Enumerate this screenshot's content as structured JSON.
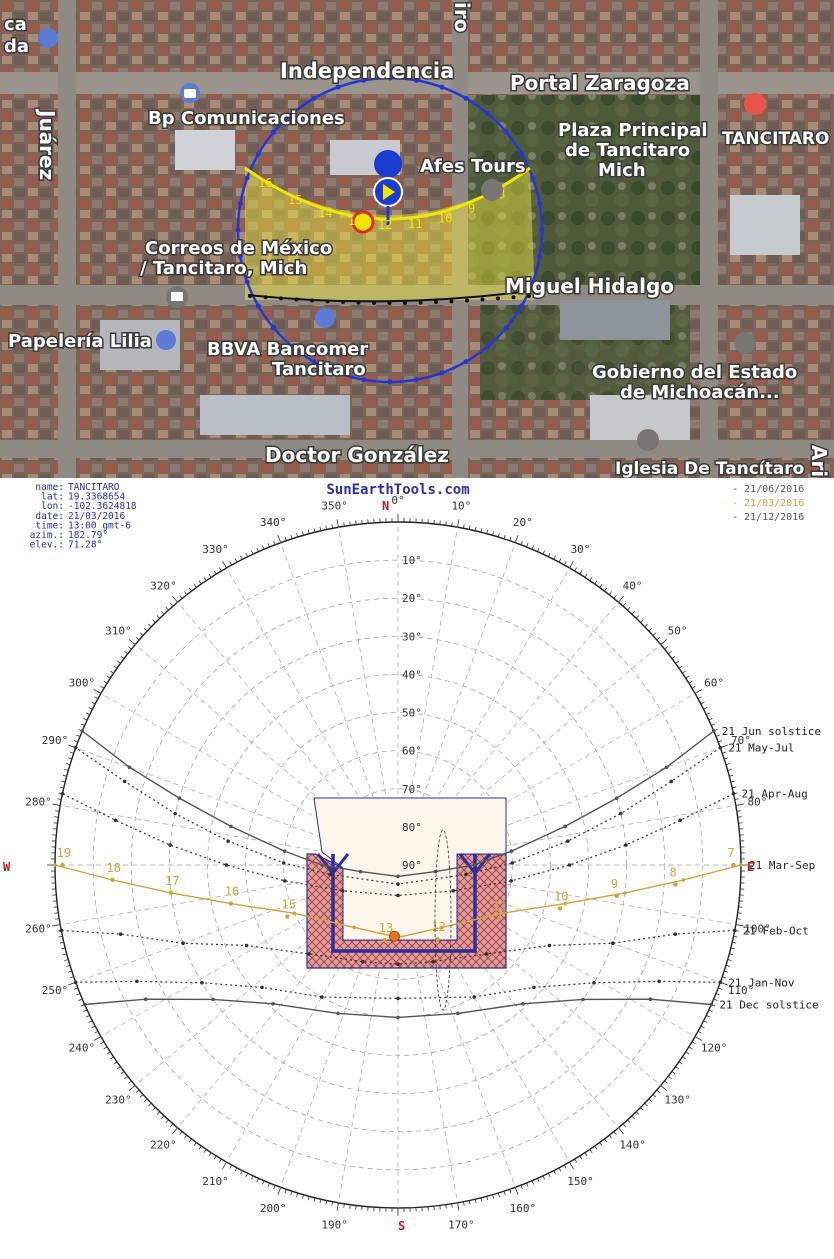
{
  "map": {
    "streets": {
      "independencia": "Independencia",
      "portal_zaragoza": "Portal Zaragoza",
      "juarez": "Juárez",
      "miguel_hidalgo": "Miguel Hidalgo",
      "doctor_gonzalez": "Doctor González",
      "top_cut": "iro",
      "right_cut": "Ari"
    },
    "places": {
      "bp": "Bp Comunicaciones",
      "plaza_1": "Plaza Principal",
      "plaza_2": "de Tancitaro",
      "plaza_3": "Mich",
      "tancitaro": "TANCITARO",
      "afes": "Afes Tours",
      "correos_1": "Correos de México",
      "correos_2": "/ Tancitaro, Mich",
      "papeleria": "Papelería Lilia",
      "bbva_1": "BBVA Bancomer",
      "bbva_2": "Tancitaro",
      "gob_1": "Gobierno del Estado",
      "gob_2": "de Michoacán...",
      "iglesia": "Iglesia De Tancítaro",
      "topleft_1": "ca",
      "topleft_2": "da"
    },
    "sun_hours": [
      "16",
      "15",
      "14",
      "13",
      "12",
      "11",
      "10",
      "9",
      "8"
    ],
    "colors": {
      "sun_path": "#f2e600",
      "horizon_circle": "#2436d6",
      "shadow_line": "#111111",
      "sun": "#e02a1e",
      "marker": "#1a3ccf"
    }
  },
  "chart_data": {
    "type": "polar sun-path diagram",
    "title": "SunEarthTools.com",
    "info": [
      {
        "label": "name:",
        "value": "TANCITARO"
      },
      {
        "label": "lat:",
        "value": "19.3368654"
      },
      {
        "label": "lon:",
        "value": "-102.3624818"
      },
      {
        "label": "date:",
        "value": "21/03/2016"
      },
      {
        "label": "time:",
        "value": "13:00 gmt-6"
      },
      {
        "label": "azim.:",
        "value": "182.79°"
      },
      {
        "label": "elev.:",
        "value": "71.28°"
      }
    ],
    "legend": [
      {
        "label": "- 21/06/2016",
        "color": "#555555"
      },
      {
        "label": "- 21/03/2016",
        "color": "#d4a240"
      },
      {
        "label": "- 21/12/2016",
        "color": "#555555"
      }
    ],
    "cardinals": {
      "N": "N",
      "E": "E",
      "S": "S",
      "W": "W"
    },
    "azimuth_labels": [
      {
        "az": 0,
        "label": "0°"
      },
      {
        "az": 10,
        "label": "10°"
      },
      {
        "az": 20,
        "label": "20°"
      },
      {
        "az": 30,
        "label": "30°"
      },
      {
        "az": 40,
        "label": "40°"
      },
      {
        "az": 50,
        "label": "50°"
      },
      {
        "az": 60,
        "label": "60°"
      },
      {
        "az": 70,
        "label": "70°"
      },
      {
        "az": 80,
        "label": "80°"
      },
      {
        "az": 100,
        "label": "100°"
      },
      {
        "az": 110,
        "label": "110°"
      },
      {
        "az": 120,
        "label": "120°"
      },
      {
        "az": 130,
        "label": "130°"
      },
      {
        "az": 140,
        "label": "140°"
      },
      {
        "az": 150,
        "label": "150°"
      },
      {
        "az": 160,
        "label": "160°"
      },
      {
        "az": 170,
        "label": "170°"
      },
      {
        "az": 190,
        "label": "190°"
      },
      {
        "az": 200,
        "label": "200°"
      },
      {
        "az": 210,
        "label": "210°"
      },
      {
        "az": 220,
        "label": "220°"
      },
      {
        "az": 230,
        "label": "230°"
      },
      {
        "az": 240,
        "label": "240°"
      },
      {
        "az": 250,
        "label": "250°"
      },
      {
        "az": 260,
        "label": "260°"
      },
      {
        "az": 280,
        "label": "280°"
      },
      {
        "az": 290,
        "label": "290°"
      },
      {
        "az": 300,
        "label": "300°"
      },
      {
        "az": 310,
        "label": "310°"
      },
      {
        "az": 320,
        "label": "320°"
      },
      {
        "az": 330,
        "label": "330°"
      },
      {
        "az": 340,
        "label": "340°"
      },
      {
        "az": 350,
        "label": "350°"
      }
    ],
    "elevation_labels": [
      "10°",
      "20°",
      "30°",
      "40°",
      "50°",
      "60°",
      "70°",
      "80°",
      "90°"
    ],
    "elevation_values": [
      10,
      20,
      30,
      40,
      50,
      60,
      70,
      80,
      90
    ],
    "series": [
      {
        "name": "21 Jun  solstice",
        "date": "21/06/2016",
        "style": "solid",
        "color": "#555555",
        "points": [
          [
            67,
            0
          ],
          [
            70,
            15
          ],
          [
            73,
            30
          ],
          [
            77,
            45
          ],
          [
            83,
            60
          ],
          [
            90,
            70
          ],
          [
            100,
            80
          ],
          [
            180,
            87
          ],
          [
            260,
            80
          ],
          [
            270,
            70
          ],
          [
            277,
            60
          ],
          [
            283,
            45
          ],
          [
            287,
            30
          ],
          [
            290,
            15
          ],
          [
            293,
            0
          ]
        ]
      },
      {
        "name": "21 May-Jul",
        "style": "dotted",
        "color": "#333333",
        "points": [
          [
            70,
            0
          ],
          [
            73,
            15
          ],
          [
            77,
            30
          ],
          [
            82,
            45
          ],
          [
            89,
            60
          ],
          [
            98,
            72
          ],
          [
            180,
            85
          ],
          [
            262,
            72
          ],
          [
            271,
            60
          ],
          [
            278,
            45
          ],
          [
            283,
            30
          ],
          [
            287,
            15
          ],
          [
            290,
            0
          ]
        ]
      },
      {
        "name": "21 Apr-Aug",
        "style": "dotted",
        "color": "#333333",
        "points": [
          [
            78,
            0
          ],
          [
            81,
            15
          ],
          [
            85,
            30
          ],
          [
            90,
            45
          ],
          [
            98,
            60
          ],
          [
            115,
            74
          ],
          [
            180,
            82
          ],
          [
            245,
            74
          ],
          [
            262,
            60
          ],
          [
            270,
            45
          ],
          [
            275,
            30
          ],
          [
            279,
            15
          ],
          [
            282,
            0
          ]
        ]
      },
      {
        "name": "21 Mar-Sep",
        "date": "21/03/2016",
        "style": "solid",
        "color": "#d4a240",
        "points": [
          [
            90,
            0
          ],
          [
            93,
            15
          ],
          [
            97,
            30
          ],
          [
            103,
            45
          ],
          [
            115,
            60
          ],
          [
            145,
            70
          ],
          [
            180,
            71
          ],
          [
            215,
            70
          ],
          [
            245,
            60
          ],
          [
            257,
            45
          ],
          [
            263,
            30
          ],
          [
            267,
            15
          ],
          [
            270,
            0
          ]
        ]
      },
      {
        "name": "21 Feb-Oct",
        "style": "dotted",
        "color": "#333333",
        "points": [
          [
            101,
            0
          ],
          [
            104,
            15
          ],
          [
            110,
            30
          ],
          [
            118,
            45
          ],
          [
            135,
            57
          ],
          [
            160,
            63
          ],
          [
            180,
            64
          ],
          [
            200,
            63
          ],
          [
            225,
            57
          ],
          [
            242,
            45
          ],
          [
            250,
            30
          ],
          [
            256,
            15
          ],
          [
            259,
            0
          ]
        ]
      },
      {
        "name": "21 Jan-Nov",
        "style": "dotted",
        "color": "#333333",
        "points": [
          [
            110,
            0
          ],
          [
            114,
            15
          ],
          [
            121,
            30
          ],
          [
            132,
            42
          ],
          [
            150,
            50
          ],
          [
            180,
            55
          ],
          [
            210,
            50
          ],
          [
            228,
            42
          ],
          [
            239,
            30
          ],
          [
            246,
            15
          ],
          [
            250,
            0
          ]
        ]
      },
      {
        "name": "21 Dec  solstice",
        "date": "21/12/2016",
        "style": "solid",
        "color": "#555555",
        "points": [
          [
            114,
            0
          ],
          [
            118,
            15
          ],
          [
            126,
            30
          ],
          [
            138,
            41
          ],
          [
            158,
            48
          ],
          [
            180,
            50
          ],
          [
            202,
            48
          ],
          [
            222,
            41
          ],
          [
            234,
            30
          ],
          [
            242,
            15
          ],
          [
            246,
            0
          ]
        ]
      }
    ],
    "hour_labels": [
      {
        "label": "7",
        "az": 90,
        "el": 2
      },
      {
        "label": "8",
        "az": 94,
        "el": 17
      },
      {
        "label": "9",
        "az": 98,
        "el": 32
      },
      {
        "label": "10",
        "az": 105,
        "el": 46
      },
      {
        "label": "11",
        "az": 118,
        "el": 60
      },
      {
        "label": "12",
        "az": 152,
        "el": 68
      },
      {
        "label": "13",
        "az": 190,
        "el": 70
      },
      {
        "label": "15",
        "az": 245,
        "el": 58
      },
      {
        "label": "16",
        "az": 257,
        "el": 45
      },
      {
        "label": "17",
        "az": 263,
        "el": 30
      },
      {
        "label": "18",
        "az": 267,
        "el": 15
      },
      {
        "label": "19",
        "az": 270,
        "el": 2
      }
    ],
    "sun_position": {
      "az": 182.79,
      "el": 71.28
    },
    "obstruction": {
      "name": "building outline",
      "fill": "#d9a0a0",
      "stroke": "#2b2f9e"
    },
    "shadow_area": {
      "fill": "#fff7ec"
    }
  }
}
